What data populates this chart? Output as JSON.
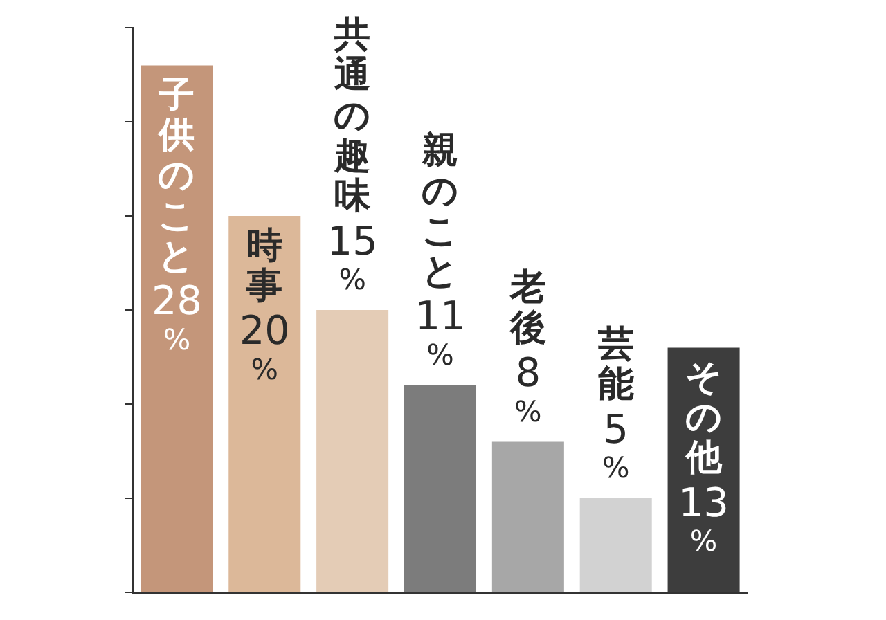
{
  "chart_data": {
    "type": "bar",
    "categories": [
      "子供のこと",
      "時事",
      "共通の趣味",
      "親のこと",
      "老後",
      "芸能",
      "その他"
    ],
    "values": [
      28,
      20,
      15,
      11,
      8,
      5,
      13
    ],
    "value_labels": [
      "28%",
      "20%",
      "15%",
      "11%",
      "8%",
      "5%",
      "13%"
    ],
    "colors": [
      "#c4967a",
      "#dcb899",
      "#e4ccb6",
      "#7c7c7c",
      "#a7a7a7",
      "#d2d2d2",
      "#3d3d3d"
    ],
    "ylim": [
      0,
      30
    ],
    "yticks": [
      {
        "value": 0,
        "label": null
      },
      {
        "value": 5,
        "label": null
      },
      {
        "value": 10,
        "label": null
      },
      {
        "value": 15,
        "label": null
      },
      {
        "value": 20,
        "label": null
      },
      {
        "value": 25,
        "label": null
      },
      {
        "value": 30,
        "label": null
      }
    ],
    "tick_labels": false,
    "grid": false,
    "legend": false
  }
}
